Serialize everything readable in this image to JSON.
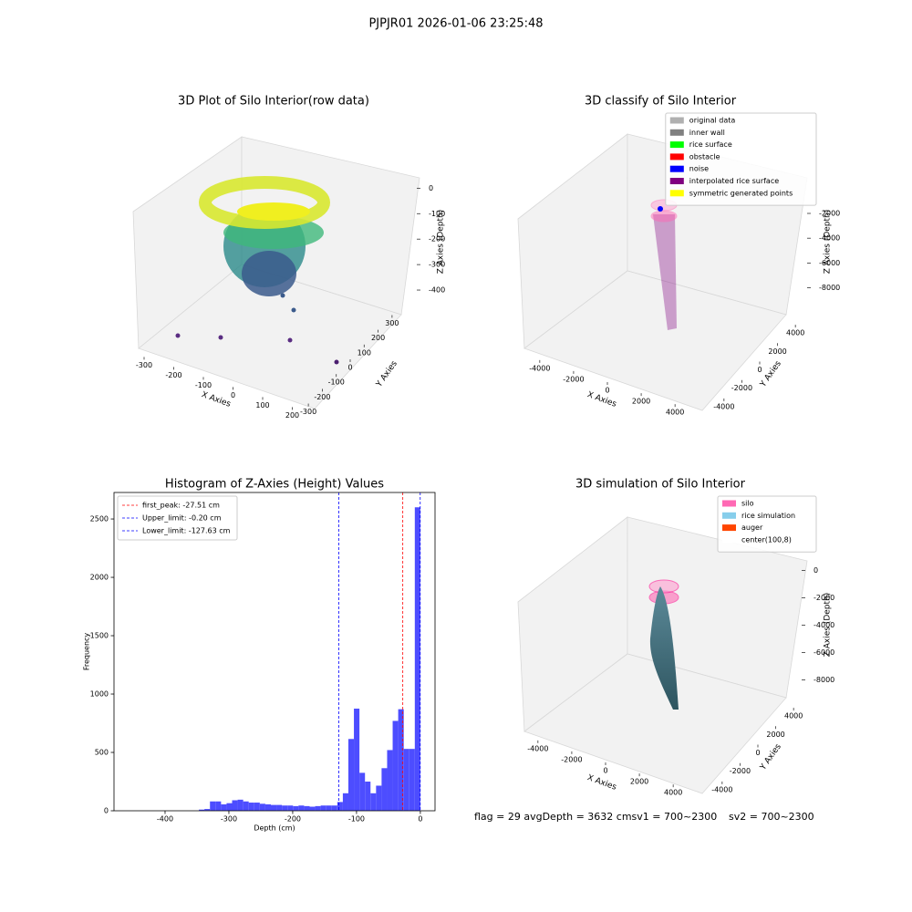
{
  "figure": {
    "title": "PJPJR01 2026-01-06 23:25:48",
    "notes": [
      "flag = 29  avgDepth = 3632 cmsv1 = 700~2300",
      "sv2 = 700~2300"
    ]
  },
  "chart_data": [
    {
      "type": "scatter3d",
      "title": "3D Plot of Silo Interior(row data)",
      "xlabel": "X Axies",
      "ylabel": "Y Axies",
      "zlabel": "Z Axies (Depth)",
      "xlim": [
        -340,
        260
      ],
      "xticks": [
        -300,
        -200,
        -100,
        0,
        100,
        200
      ],
      "ylim": [
        -340,
        340
      ],
      "yticks": [
        -300,
        -200,
        -100,
        0,
        100,
        200,
        300
      ],
      "zlim": [
        -450,
        30
      ],
      "zticks": [
        -400,
        -300,
        -200,
        -100,
        0
      ]
    },
    {
      "type": "scatter3d",
      "title": "3D classify of Silo Interior",
      "xlabel": "X Axies",
      "ylabel": "Y Axies",
      "zlabel": "Z Axies (Depth)",
      "xlim": [
        -4800,
        4800
      ],
      "xticks": [
        -4000,
        -2000,
        0,
        2000,
        4000
      ],
      "ylim": [
        -4800,
        4800
      ],
      "yticks": [
        -4000,
        -2000,
        0,
        2000,
        4000
      ],
      "zlim": [
        -9500,
        500
      ],
      "zticks": [
        -8000,
        -6000,
        -4000,
        -2000
      ],
      "series": [
        {
          "name": "original data",
          "color": "#b0b0b0"
        },
        {
          "name": "inner wall",
          "color": "#808080"
        },
        {
          "name": "rice surface",
          "color": "#00ff00"
        },
        {
          "name": "obstacle",
          "color": "#ff0000"
        },
        {
          "name": "noise",
          "color": "#0000ff"
        },
        {
          "name": "interpolated rice surface",
          "color": "#800080"
        },
        {
          "name": "symmetric generated points",
          "color": "#ffff00"
        }
      ],
      "legend": "upper right"
    },
    {
      "type": "histogram",
      "title": "Histogram of Z-Axies (Height) Values",
      "xlabel": "Depth (cm)",
      "ylabel": "Frequency",
      "color": "#4d4dff",
      "bins": [
        -347,
        -338.33,
        -329.65,
        -320.98,
        -312.3,
        -303.63,
        -294.95,
        -286.28,
        -277.6,
        -268.93,
        -260.25,
        -251.58,
        -242.9,
        -234.23,
        -225.55,
        -216.88,
        -208.2,
        -199.53,
        -190.85,
        -182.18,
        -173.5,
        -164.83,
        -156.15,
        -147.48,
        -138.8,
        -130.13,
        -121.45,
        -112.78,
        -104.1,
        -95.43,
        -86.75,
        -78.08,
        -69.4,
        -60.73,
        -52.05,
        -43.38,
        -34.7,
        -26.03,
        -17.35,
        -8.68,
        0
      ],
      "values": [
        10,
        15,
        80,
        80,
        55,
        65,
        90,
        95,
        80,
        70,
        70,
        60,
        55,
        50,
        50,
        45,
        45,
        40,
        45,
        40,
        35,
        40,
        45,
        45,
        45,
        75,
        150,
        615,
        875,
        325,
        250,
        150,
        215,
        365,
        520,
        770,
        870,
        530,
        530,
        2600
      ],
      "xlim": [
        -480,
        23
      ],
      "xticks": [
        -400,
        -300,
        -200,
        -100,
        0
      ],
      "ylim": [
        0,
        2727
      ],
      "yticks": [
        0,
        500,
        1000,
        1500,
        2000,
        2500
      ],
      "vlines": [
        {
          "name": "first_peak: -27.51 cm",
          "value": -27.51,
          "color": "#ff0000"
        },
        {
          "name": "Upper_limit: -0.20 cm",
          "value": -0.2,
          "color": "#0000ff"
        },
        {
          "name": "Lower_limit: -127.63 cm",
          "value": -127.63,
          "color": "#0000ff"
        }
      ],
      "legend": "upper left"
    },
    {
      "type": "surface3d",
      "title": "3D simulation of Silo Interior",
      "xlabel": "X Axies",
      "ylabel": "Y Axies",
      "zlabel": "Z Axies (Depth)",
      "xlim": [
        -4800,
        4800
      ],
      "xticks": [
        -4000,
        -2000,
        0,
        2000,
        4000
      ],
      "ylim": [
        -4800,
        4800
      ],
      "yticks": [
        -4000,
        -2000,
        0,
        2000,
        4000
      ],
      "zlim": [
        -9500,
        500
      ],
      "zticks": [
        -8000,
        -6000,
        -4000,
        -2000,
        0
      ],
      "series": [
        {
          "name": "silo",
          "color": "#ff69b4"
        },
        {
          "name": "rice simulation",
          "color": "#87ceeb"
        },
        {
          "name": "auger",
          "color": "#ff4500"
        },
        {
          "name": "center(100,8)",
          "color": "#ffffff"
        }
      ],
      "legend": "upper right"
    }
  ]
}
